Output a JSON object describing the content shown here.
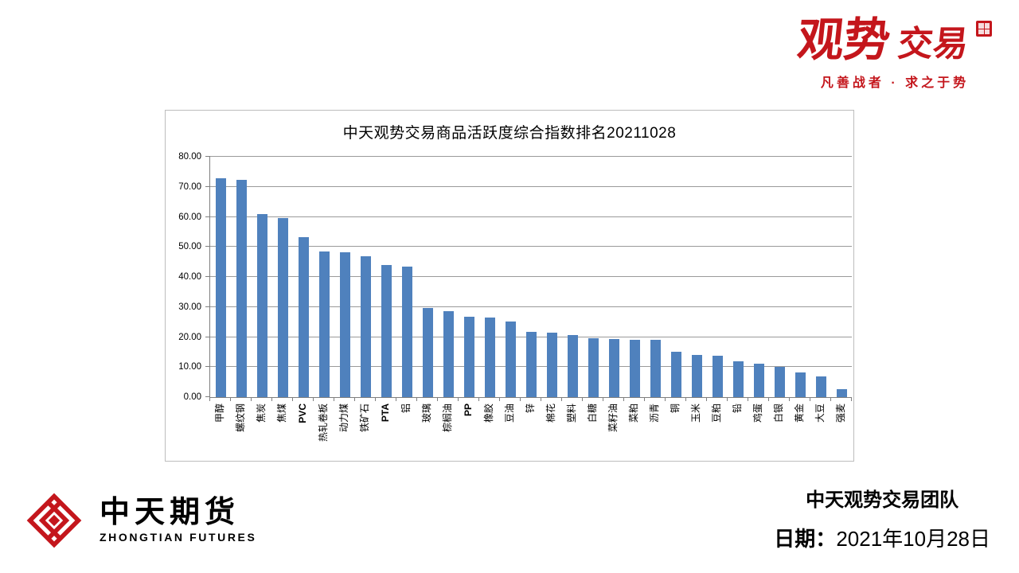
{
  "logo_top_right": {
    "brand_main": "观势",
    "brand_sub": "交易",
    "tagline": "凡善战者 · 求之于势",
    "brand_color": "#c4161c"
  },
  "chart_data": {
    "type": "bar",
    "title": "中天观势交易商品活跃度综合指数排名20211028",
    "categories": [
      "甲醇",
      "螺纹钢",
      "焦炭",
      "焦煤",
      "PVC",
      "热轧卷板",
      "动力煤",
      "铁矿石",
      "PTA",
      "铝",
      "玻璃",
      "棕榈油",
      "PP",
      "橡胶",
      "豆油",
      "锌",
      "棉花",
      "塑料",
      "白糖",
      "菜籽油",
      "菜粕",
      "沥青",
      "铜",
      "玉米",
      "豆粕",
      "铅",
      "鸡蛋",
      "白银",
      "黄金",
      "大豆",
      "强麦"
    ],
    "values": [
      72.8,
      72.2,
      61.0,
      59.6,
      53.2,
      48.6,
      48.1,
      47.0,
      44.0,
      43.5,
      29.7,
      28.7,
      26.8,
      26.5,
      25.2,
      21.8,
      21.5,
      20.7,
      19.7,
      19.4,
      19.1,
      19.0,
      15.2,
      14.1,
      13.8,
      11.8,
      11.0,
      10.2,
      8.1,
      6.9,
      2.7
    ],
    "ylim": [
      0,
      80
    ],
    "ytick_step": 10,
    "ytick_labels": [
      "0.00",
      "10.00",
      "20.00",
      "30.00",
      "40.00",
      "50.00",
      "60.00",
      "70.00",
      "80.00"
    ],
    "bar_color": "#4f81bd",
    "grid": true,
    "legend": false,
    "xlabel": "",
    "ylabel": ""
  },
  "footer_left": {
    "company": "中天期货",
    "company_en": "ZHONGTIAN FUTURES",
    "logo_color": "#c4161c"
  },
  "footer_right": {
    "team": "中天观势交易团队",
    "date_label": "日期：",
    "date_value": "2021年10月28日"
  }
}
